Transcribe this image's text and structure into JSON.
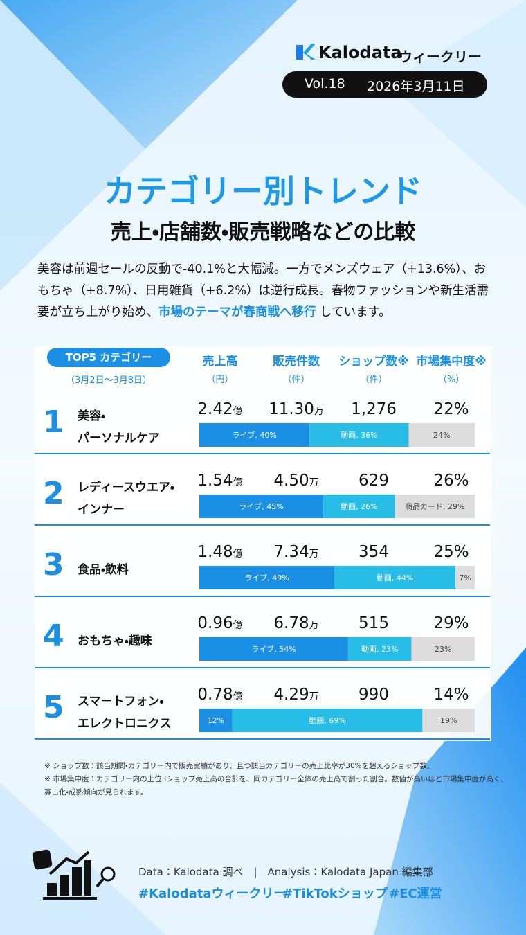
{
  "header": {
    "brand": "Kalodata",
    "brand_suffix": "ウィークリー",
    "volume": "Vol.18",
    "date": "2026年3月11日"
  },
  "title": "カテゴリー別トレンド",
  "subtitle": "売上・店舗数・販売戦略などの比較",
  "intro": [
    {
      "text": "美容は前週セールの反動で-40.1%と大幅減。一方でメンズウェア（+13.6%）、おもちゃ（+8.7%）、日用雑貨（+6.2%）は逆行成長。春物ファッションや新生活需要が立ち上がり始め、"
    },
    {
      "text": "市場のテーマが春商戦へ移行",
      "highlight": true
    },
    {
      "text": " しています。"
    }
  ],
  "table": {
    "label": "TOP5 カテゴリー",
    "period": "（3月2日〜3月8日）",
    "columns": [
      {
        "name": "売上高",
        "unit": "（円）"
      },
      {
        "name": "販売件数",
        "unit": "（件）"
      },
      {
        "name": "ショップ数※",
        "unit": "（件）"
      },
      {
        "name": "市場集中度※",
        "unit": "（%）"
      }
    ],
    "rows": [
      {
        "rank": "1",
        "category": [
          "美容・",
          "パーソナルケア"
        ],
        "sales": "2.42",
        "sales_unit": "億",
        "units": "11.30",
        "units_unit": "万",
        "shops": "1,276",
        "concentration": "22%",
        "mix": [
          {
            "value": 40,
            "label": "ライブ, 40%"
          },
          {
            "value": 36,
            "label": "動画, 36%"
          },
          {
            "value": 24,
            "label": "24%"
          }
        ]
      },
      {
        "rank": "2",
        "category": [
          "レディースウエア・",
          "インナー"
        ],
        "sales": "1.54",
        "sales_unit": "億",
        "units": "4.50",
        "units_unit": "万",
        "shops": "629",
        "concentration": "26%",
        "mix": [
          {
            "value": 45,
            "label": "ライブ, 45%"
          },
          {
            "value": 26,
            "label": "動画, 26%"
          },
          {
            "value": 29,
            "label": "商品カード, 29%"
          }
        ]
      },
      {
        "rank": "3",
        "category": [
          "食品・飲料"
        ],
        "sales": "1.48",
        "sales_unit": "億",
        "units": "7.34",
        "units_unit": "万",
        "shops": "354",
        "concentration": "25%",
        "mix": [
          {
            "value": 49,
            "label": "ライブ, 49%"
          },
          {
            "value": 44,
            "label": "動画, 44%"
          },
          {
            "value": 7,
            "label": "7%"
          }
        ]
      },
      {
        "rank": "4",
        "category": [
          "おもちゃ・趣味"
        ],
        "sales": "0.96",
        "sales_unit": "億",
        "units": "6.78",
        "units_unit": "万",
        "shops": "515",
        "concentration": "29%",
        "mix": [
          {
            "value": 54,
            "label": "ライブ, 54%"
          },
          {
            "value": 23,
            "label": "動画, 23%"
          },
          {
            "value": 23,
            "label": "23%"
          }
        ]
      },
      {
        "rank": "5",
        "category": [
          "スマートフォン・",
          "エレクトロニクス"
        ],
        "sales": "0.78",
        "sales_unit": "億",
        "units": "4.29",
        "units_unit": "万",
        "shops": "990",
        "concentration": "14%",
        "mix": [
          {
            "value": 12,
            "label": "12%"
          },
          {
            "value": 69,
            "label": "動画, 69%"
          },
          {
            "value": 19,
            "label": "19%"
          }
        ]
      }
    ]
  },
  "notes": [
    "※ ショップ数：該当期間・カテゴリー内で販売実績があり、且つ該当カテゴリーの売上比率が30%を超えるショップ数。",
    "※ 市場集中度：カテゴリー内の上位3ショップ売上高の合計を、同カテゴリー全体の売上高で割った割合。数値が高いほど市場集中度が高く、",
    "寡占化・成熟傾向が見られます。"
  ],
  "footer": {
    "source": "Data：Kalodata 調べ　|　Analysis：Kalodata Japan 編集部",
    "hashtags": [
      "#Kalodataウィークリー",
      "#TikTokショップ",
      "#EC運営"
    ]
  }
}
